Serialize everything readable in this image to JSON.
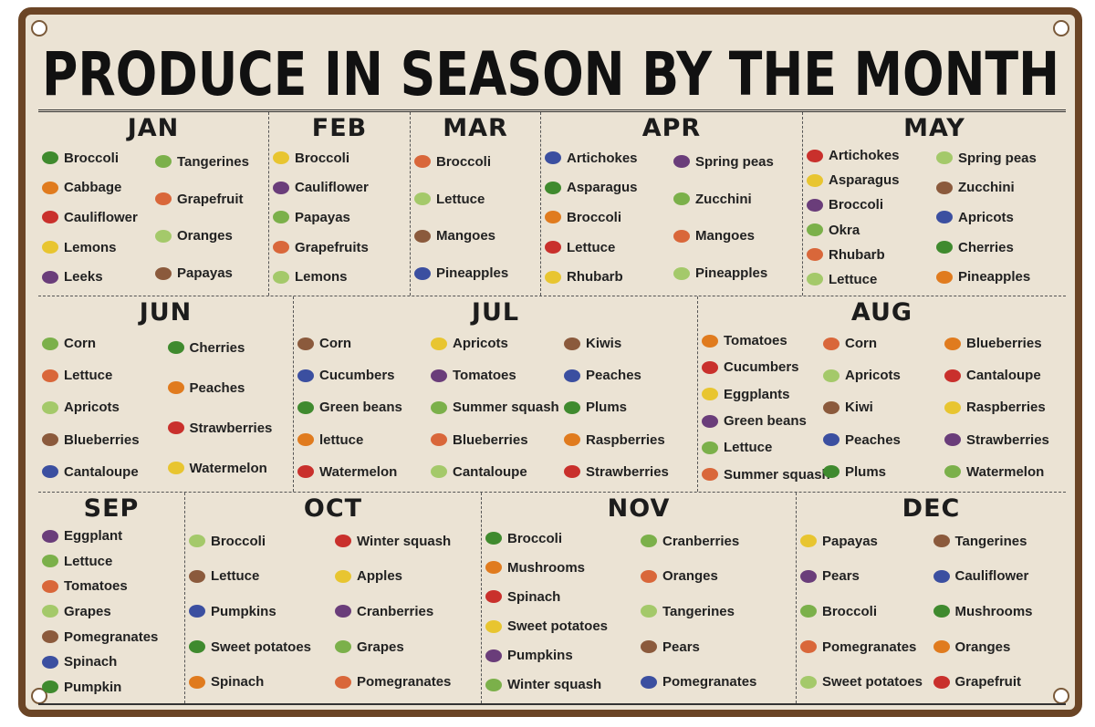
{
  "title": "PRODUCE IN SEASON BY THE MONTH",
  "months": [
    {
      "name": "JAN",
      "columns": [
        [
          "Broccoli",
          "Cabbage",
          "Cauliflower",
          "Lemons",
          "Leeks"
        ],
        [
          "Tangerines",
          "Grapefruit",
          "Oranges",
          "Papayas"
        ]
      ]
    },
    {
      "name": "FEB",
      "columns": [
        [
          "Broccoli",
          "Cauliflower",
          "Papayas",
          "Grapefruits",
          "Lemons"
        ]
      ]
    },
    {
      "name": "MAR",
      "columns": [
        [
          "Broccoli",
          "Lettuce",
          "Mangoes",
          "Pineapples"
        ]
      ]
    },
    {
      "name": "APR",
      "columns": [
        [
          "Artichokes",
          "Asparagus",
          "Broccoli",
          "Lettuce",
          "Rhubarb"
        ],
        [
          "Spring peas",
          "Zucchini",
          "Mangoes",
          "Pineapples"
        ]
      ]
    },
    {
      "name": "MAY",
      "columns": [
        [
          "Artichokes",
          "Asparagus",
          "Broccoli",
          "Okra",
          "Rhubarb",
          "Lettuce"
        ],
        [
          "Spring peas",
          "Zucchini",
          "Apricots",
          "Cherries",
          "Pineapples"
        ]
      ]
    },
    {
      "name": "JUN",
      "columns": [
        [
          "Corn",
          "Lettuce",
          "Apricots",
          "Blueberries",
          "Cantaloupe"
        ],
        [
          "Cherries",
          "Peaches",
          "Strawberries",
          "Watermelon"
        ]
      ]
    },
    {
      "name": "JUL",
      "columns": [
        [
          "Corn",
          "Cucumbers",
          "Green beans",
          "lettuce",
          "Watermelon"
        ],
        [
          "Apricots",
          "Tomatoes",
          "Summer squash",
          "Blueberries",
          "Cantaloupe"
        ],
        [
          "Kiwis",
          "Peaches",
          "Plums",
          "Raspberries",
          "Strawberries"
        ]
      ]
    },
    {
      "name": "AUG",
      "columns": [
        [
          "Tomatoes",
          "Cucumbers",
          "Eggplants",
          "Green beans",
          "Lettuce",
          "Summer squash"
        ],
        [
          "Corn",
          "Apricots",
          "Kiwi",
          "Peaches",
          "Plums"
        ],
        [
          "Blueberries",
          "Cantaloupe",
          "Raspberries",
          "Strawberries",
          "Watermelon"
        ]
      ]
    },
    {
      "name": "SEP",
      "columns": [
        [
          "Eggplant",
          "Lettuce",
          "Tomatoes",
          "Grapes",
          "Pomegranates",
          "Spinach",
          "Pumpkin"
        ]
      ]
    },
    {
      "name": "OCT",
      "columns": [
        [
          "Broccoli",
          "Lettuce",
          "Pumpkins",
          "Sweet potatoes",
          "Spinach"
        ],
        [
          "Winter squash",
          "Apples",
          "Cranberries",
          "Grapes",
          "Pomegranates"
        ]
      ]
    },
    {
      "name": "NOV",
      "columns": [
        [
          "Broccoli",
          "Mushrooms",
          "Spinach",
          "Sweet potatoes",
          "Pumpkins",
          "Winter squash"
        ],
        [
          "Cranberries",
          "Oranges",
          "Tangerines",
          "Pears",
          "Pomegranates"
        ]
      ]
    },
    {
      "name": "DEC",
      "columns": [
        [
          "Papayas",
          "Pears",
          "Broccoli",
          "Pomegranates",
          "Sweet potatoes"
        ],
        [
          "Tangerines",
          "Cauliflower",
          "Mushrooms",
          "Oranges",
          "Grapefruit"
        ]
      ]
    }
  ]
}
